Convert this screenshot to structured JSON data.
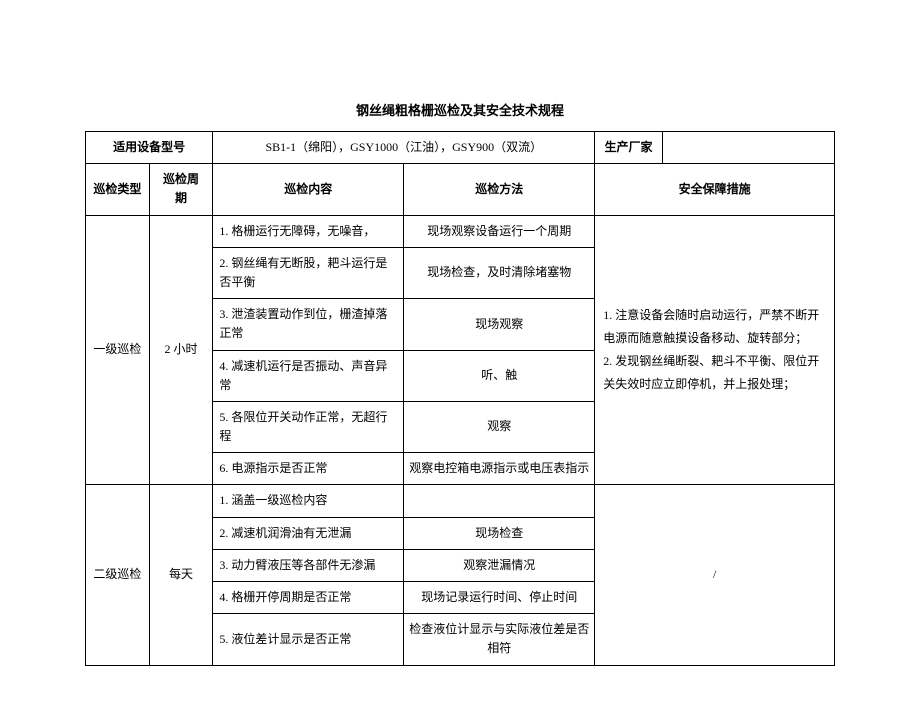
{
  "title": "钢丝绳粗格栅巡检及其安全技术规程",
  "header": {
    "model_label": "适用设备型号",
    "model_value": "SB1-1（绵阳），GSY1000（江油），GSY900（双流）",
    "manufacturer_label": "生产厂家",
    "manufacturer_value": ""
  },
  "columns": {
    "type": "巡检类型",
    "period": "巡检周\n期",
    "content": "巡检内容",
    "method": "巡检方法",
    "safety": "安全保障措施"
  },
  "level1": {
    "type": "一级巡检",
    "period": "2 小时",
    "rows": [
      {
        "content": "1. 格栅运行无障碍，无噪音，",
        "method": "现场观察设备运行一个周期"
      },
      {
        "content": "2. 钢丝绳有无断股，耙斗运行是否平衡",
        "method": "现场检查，及时清除堵塞物"
      },
      {
        "content": "3. 泄渣装置动作到位，栅渣掉落正常",
        "method": "现场观察"
      },
      {
        "content": "4. 减速机运行是否振动、声音异常",
        "method": "听、触"
      },
      {
        "content": "5. 各限位开关动作正常，无超行程",
        "method": "观察"
      },
      {
        "content": "6. 电源指示是否正常",
        "method": "观察电控箱电源指示或电压表指示"
      }
    ],
    "safety": "1. 注意设备会随时启动运行，严禁不断开电源而随意触摸设备移动、旋转部分；\n2. 发现钢丝绳断裂、耙斗不平衡、限位开关失效时应立即停机，并上报处理；"
  },
  "level2": {
    "type": "二级巡检",
    "period": "每天",
    "rows": [
      {
        "content": "1. 涵盖一级巡检内容",
        "method": ""
      },
      {
        "content": "2. 减速机润滑油有无泄漏",
        "method": "现场检查"
      },
      {
        "content": "3. 动力臂液压等各部件无渗漏",
        "method": "观察泄漏情况"
      },
      {
        "content": "4. 格栅开停周期是否正常",
        "method": "现场记录运行时间、停止时间"
      },
      {
        "content": "5. 液位差计显示是否正常",
        "method": "检查液位计显示与实际液位差是否相符"
      }
    ],
    "safety": "/"
  },
  "style": {
    "font_size_title": 13,
    "font_size_body": 12,
    "border_color": "#000000",
    "background": "#ffffff"
  }
}
